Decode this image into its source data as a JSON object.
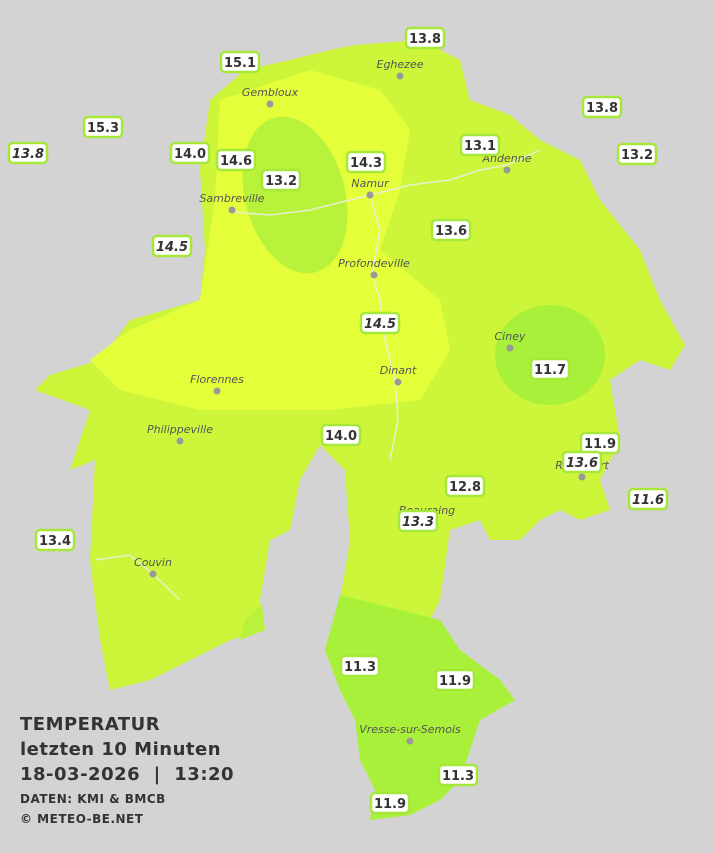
{
  "map": {
    "stations": [
      "13.8",
      "15.1",
      "15.3",
      "13.8",
      "14.0",
      "14.6",
      "13.2",
      "14.3",
      "13.1",
      "13.8",
      "13.2",
      "13.6",
      "14.5",
      "14.5",
      "11.7",
      "14.0",
      "11.9",
      "13.6",
      "12.8",
      "11.6",
      "13.3",
      "13.4",
      "11.3",
      "11.9",
      "11.3",
      "11.9"
    ],
    "towns": [
      "Eghezee",
      "Gembloux",
      "Andenne",
      "Namur",
      "Sambreville",
      "Profondeville",
      "Ciney",
      "Dinant",
      "Florennes",
      "Philippeville",
      "Beauraing",
      "Rochefort",
      "Couvin",
      "Vresse-sur-Semois"
    ]
  },
  "legend": {
    "title": "TEMPERATUR",
    "period": "letzten 10 Minuten",
    "datetime": "18-03-2026  |  13:20",
    "source": "DATEN: KMI & BMCB",
    "copyright": "© METEO-BE.NET"
  }
}
